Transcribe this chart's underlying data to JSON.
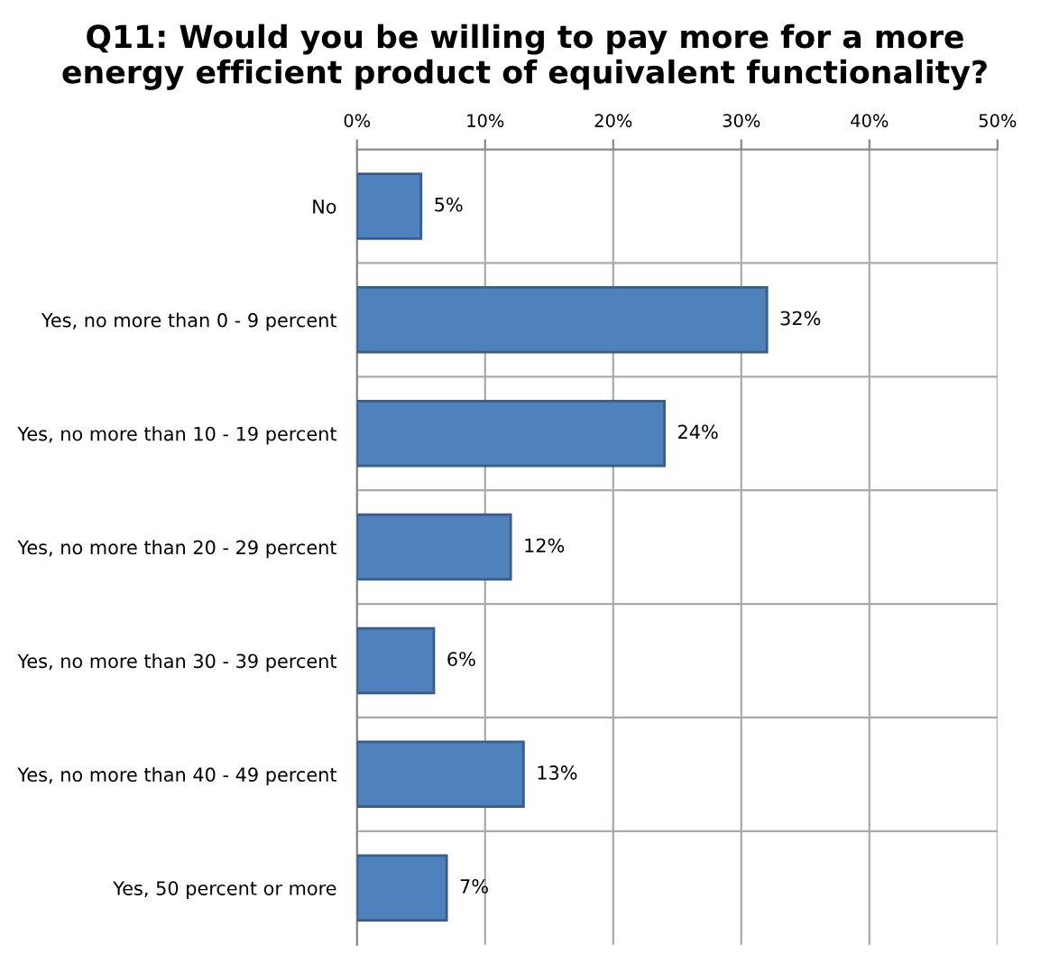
{
  "chart_data": {
    "type": "bar",
    "orientation": "horizontal",
    "title": "Q11: Would you be willing to pay more for a more\nenergy efficient product of equivalent functionality?",
    "categories": [
      "No",
      "Yes, no more than 0 - 9 percent",
      "Yes, no more than 10 - 19 percent",
      "Yes, no more than 20 - 29 percent",
      "Yes, no more than 30 - 39 percent",
      "Yes, no more than 40 - 49 percent",
      "Yes, 50 percent or more"
    ],
    "values": [
      5,
      32,
      24,
      12,
      6,
      13,
      7
    ],
    "value_labels": [
      "5%",
      "32%",
      "24%",
      "12%",
      "6%",
      "13%",
      "7%"
    ],
    "color": "#4f81bd",
    "xlim": [
      0,
      50
    ],
    "xticks": [
      {
        "value": 0,
        "label": "0%"
      },
      {
        "value": 10,
        "label": "10%"
      },
      {
        "value": 20,
        "label": "20%"
      },
      {
        "value": 30,
        "label": "30%"
      },
      {
        "value": 40,
        "label": "40%"
      },
      {
        "value": 50,
        "label": "50%"
      }
    ],
    "grid": true
  }
}
